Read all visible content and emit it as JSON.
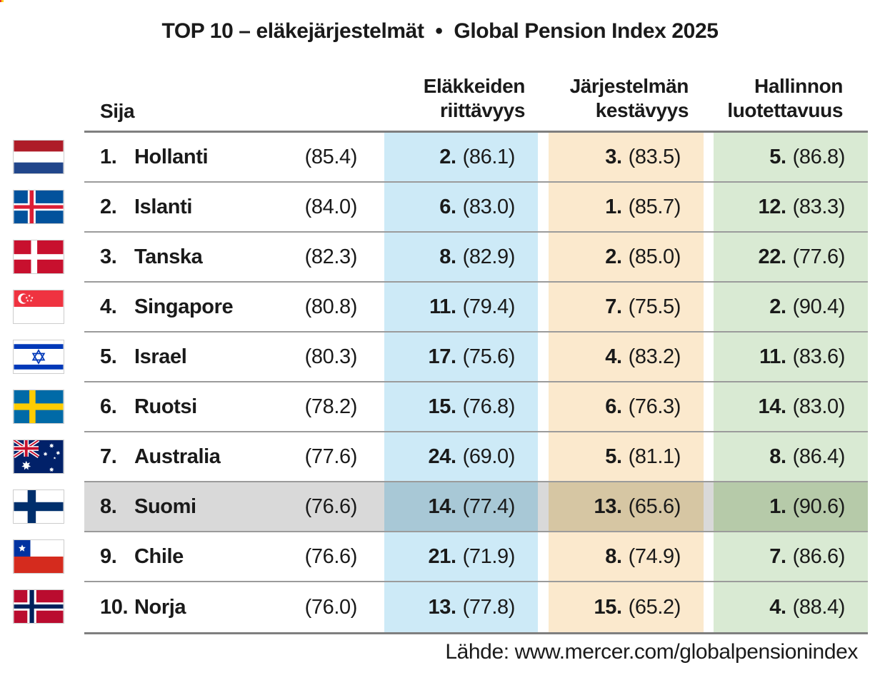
{
  "title": "TOP 10 – eläkejärjestelmät  •  Global Pension Index 2025",
  "header": {
    "rank": "Sija",
    "adequacy": "Eläkkeiden\nriittävyys",
    "sustainability": "Järjestelmän\nkestävyys",
    "integrity": "Hallinnon\nluotettavuus"
  },
  "table": {
    "rows": [
      {
        "flag": "netherlands",
        "rank": "1.",
        "country": "Hollanti",
        "total": "(85.4)",
        "ad_rank": "2.",
        "ad_score": "(86.1)",
        "su_rank": "3.",
        "su_score": "(83.5)",
        "in_rank": "5.",
        "in_score": "(86.8)",
        "highlighted": false
      },
      {
        "flag": "iceland",
        "rank": "2.",
        "country": "Islanti",
        "total": "(84.0)",
        "ad_rank": "6.",
        "ad_score": "(83.0)",
        "su_rank": "1.",
        "su_score": "(85.7)",
        "in_rank": "12.",
        "in_score": "(83.3)",
        "highlighted": false
      },
      {
        "flag": "denmark",
        "rank": "3.",
        "country": "Tanska",
        "total": "(82.3)",
        "ad_rank": "8.",
        "ad_score": "(82.9)",
        "su_rank": "2.",
        "su_score": "(85.0)",
        "in_rank": "22.",
        "in_score": "(77.6)",
        "highlighted": false
      },
      {
        "flag": "singapore",
        "rank": "4.",
        "country": "Singapore",
        "total": "(80.8)",
        "ad_rank": "11.",
        "ad_score": "(79.4)",
        "su_rank": "7.",
        "su_score": "(75.5)",
        "in_rank": "2.",
        "in_score": "(90.4)",
        "highlighted": false
      },
      {
        "flag": "israel",
        "rank": "5.",
        "country": "Israel",
        "total": "(80.3)",
        "ad_rank": "17.",
        "ad_score": "(75.6)",
        "su_rank": "4.",
        "su_score": "(83.2)",
        "in_rank": "11.",
        "in_score": "(83.6)",
        "highlighted": false
      },
      {
        "flag": "sweden",
        "rank": "6.",
        "country": "Ruotsi",
        "total": "(78.2)",
        "ad_rank": "15.",
        "ad_score": "(76.8)",
        "su_rank": "6.",
        "su_score": "(76.3)",
        "in_rank": "14.",
        "in_score": "(83.0)",
        "highlighted": false
      },
      {
        "flag": "australia",
        "rank": "7.",
        "country": "Australia",
        "total": "(77.6)",
        "ad_rank": "24.",
        "ad_score": "(69.0)",
        "su_rank": "5.",
        "su_score": "(81.1)",
        "in_rank": "8.",
        "in_score": "(86.4)",
        "highlighted": false
      },
      {
        "flag": "finland",
        "rank": "8.",
        "country": "Suomi",
        "total": "(76.6)",
        "ad_rank": "14.",
        "ad_score": "(77.4)",
        "su_rank": "13.",
        "su_score": "(65.6)",
        "in_rank": "1.",
        "in_score": "(90.6)",
        "highlighted": true
      },
      {
        "flag": "chile",
        "rank": "9.",
        "country": "Chile",
        "total": "(76.6)",
        "ad_rank": "21.",
        "ad_score": "(71.9)",
        "su_rank": "8.",
        "su_score": "(74.9)",
        "in_rank": "7.",
        "in_score": "(86.6)",
        "highlighted": false
      },
      {
        "flag": "norway",
        "rank": "10.",
        "country": "Norja",
        "total": "(76.0)",
        "ad_rank": "13.",
        "ad_score": "(77.8)",
        "su_rank": "15.",
        "su_score": "(65.2)",
        "in_rank": "4.",
        "in_score": "(88.4)",
        "highlighted": false
      }
    ]
  },
  "footer": {
    "source": "Lähde: www.mercer.com/globalpensionindex"
  },
  "colors": {
    "adequacy": "#cdeaf7",
    "sustainability": "#fbe9cd",
    "integrity": "#d9ead3",
    "highlight": "#d9d9d9",
    "highlight_adequacy": "#a8c8d6",
    "highlight_sustainability": "#d6c6a3",
    "highlight_integrity": "#b6caa9",
    "border_strong": "#7f7f7f",
    "border_row": "#9b9b9b",
    "text": "#1a1a1a"
  },
  "chart_data": {
    "type": "table",
    "title": "TOP 10 – eläkejärjestelmät • Global Pension Index 2025",
    "columns": [
      "Sija",
      "Eläkkeiden riittävyys",
      "Järjestelmän kestävyys",
      "Hallinnon luotettavuus"
    ],
    "rows": [
      {
        "rank": 1,
        "country": "Hollanti",
        "total": 85.4,
        "adequacy_rank": 2,
        "adequacy": 86.1,
        "sustainability_rank": 3,
        "sustainability": 83.5,
        "integrity_rank": 5,
        "integrity": 86.8
      },
      {
        "rank": 2,
        "country": "Islanti",
        "total": 84.0,
        "adequacy_rank": 6,
        "adequacy": 83.0,
        "sustainability_rank": 1,
        "sustainability": 85.7,
        "integrity_rank": 12,
        "integrity": 83.3
      },
      {
        "rank": 3,
        "country": "Tanska",
        "total": 82.3,
        "adequacy_rank": 8,
        "adequacy": 82.9,
        "sustainability_rank": 2,
        "sustainability": 85.0,
        "integrity_rank": 22,
        "integrity": 77.6
      },
      {
        "rank": 4,
        "country": "Singapore",
        "total": 80.8,
        "adequacy_rank": 11,
        "adequacy": 79.4,
        "sustainability_rank": 7,
        "sustainability": 75.5,
        "integrity_rank": 2,
        "integrity": 90.4
      },
      {
        "rank": 5,
        "country": "Israel",
        "total": 80.3,
        "adequacy_rank": 17,
        "adequacy": 75.6,
        "sustainability_rank": 4,
        "sustainability": 83.2,
        "integrity_rank": 11,
        "integrity": 83.6
      },
      {
        "rank": 6,
        "country": "Ruotsi",
        "total": 78.2,
        "adequacy_rank": 15,
        "adequacy": 76.8,
        "sustainability_rank": 6,
        "sustainability": 76.3,
        "integrity_rank": 14,
        "integrity": 83.0
      },
      {
        "rank": 7,
        "country": "Australia",
        "total": 77.6,
        "adequacy_rank": 24,
        "adequacy": 69.0,
        "sustainability_rank": 5,
        "sustainability": 81.1,
        "integrity_rank": 8,
        "integrity": 86.4
      },
      {
        "rank": 8,
        "country": "Suomi",
        "total": 76.6,
        "adequacy_rank": 14,
        "adequacy": 77.4,
        "sustainability_rank": 13,
        "sustainability": 65.6,
        "integrity_rank": 1,
        "integrity": 90.6
      },
      {
        "rank": 9,
        "country": "Chile",
        "total": 76.6,
        "adequacy_rank": 21,
        "adequacy": 71.9,
        "sustainability_rank": 8,
        "sustainability": 74.9,
        "integrity_rank": 7,
        "integrity": 86.6
      },
      {
        "rank": 10,
        "country": "Norja",
        "total": 76.0,
        "adequacy_rank": 13,
        "adequacy": 77.8,
        "sustainability_rank": 15,
        "sustainability": 65.2,
        "integrity_rank": 4,
        "integrity": 88.4
      }
    ],
    "highlighted_row": "Suomi",
    "legend_position": "none",
    "source": "Lähde: www.mercer.com/globalpensionindex"
  }
}
